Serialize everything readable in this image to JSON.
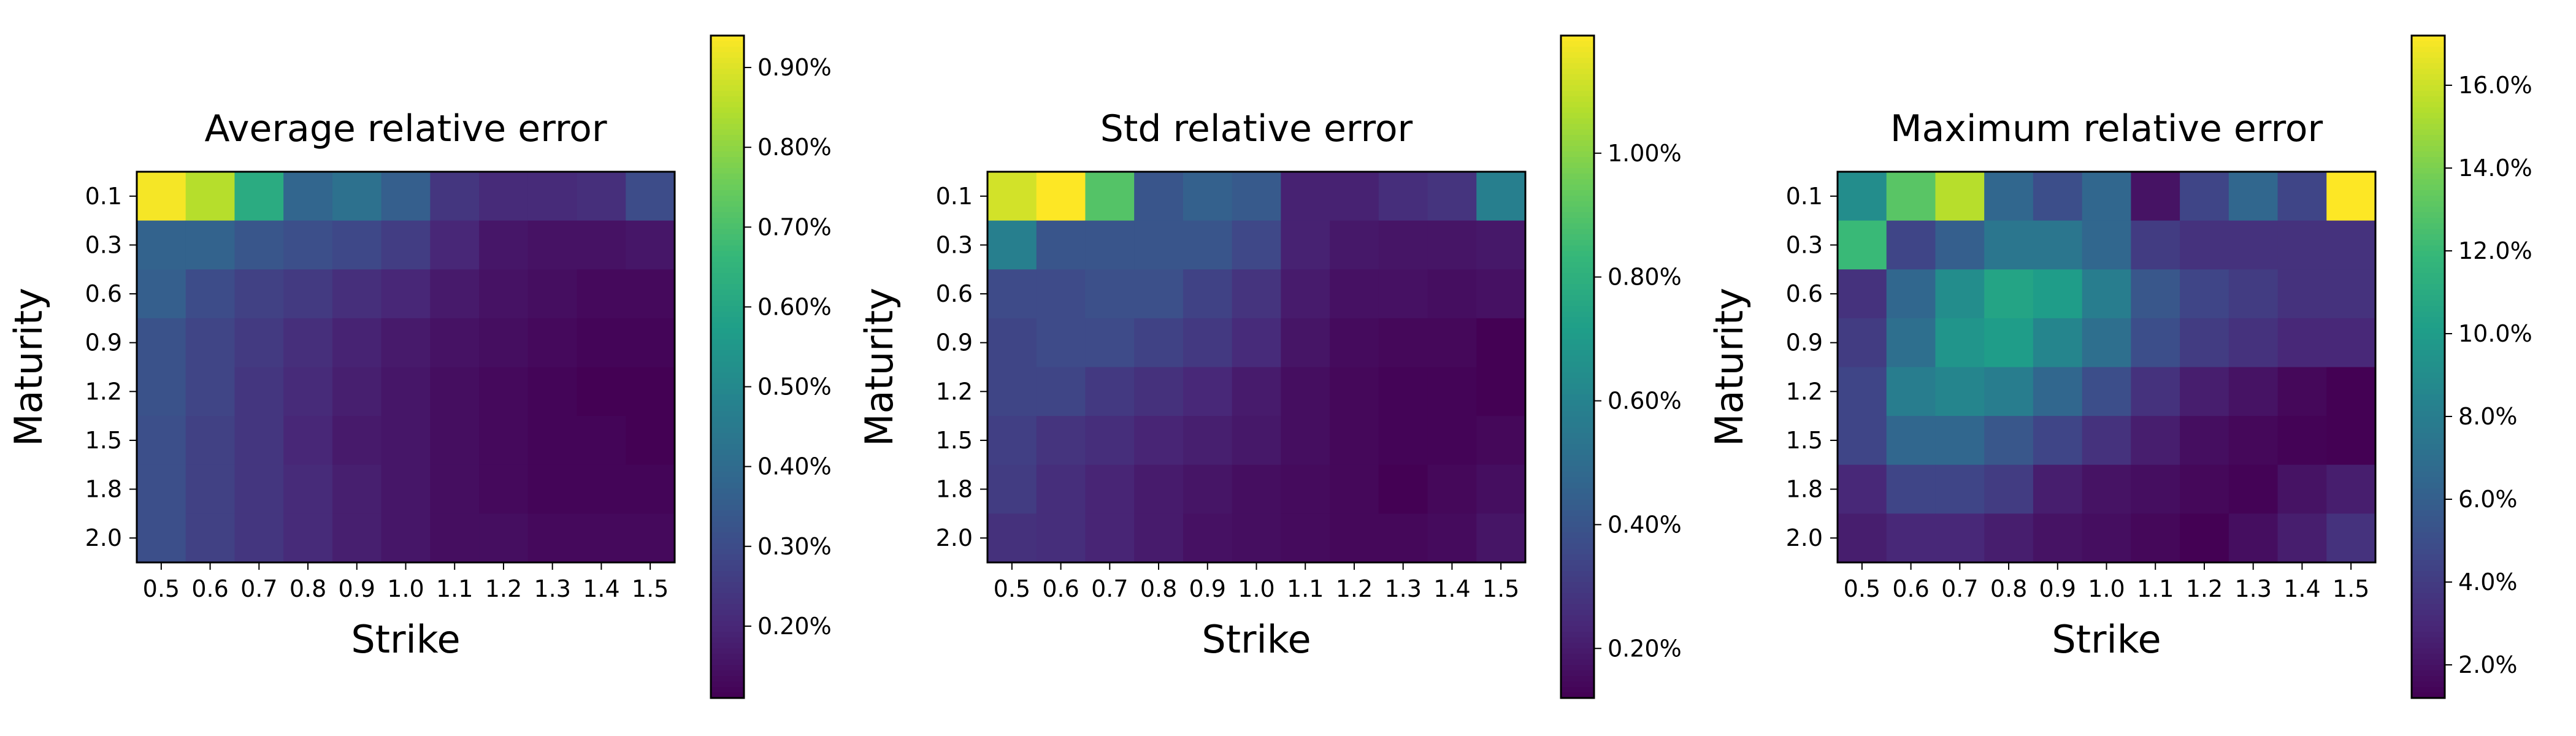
{
  "chart_data": [
    {
      "type": "heatmap",
      "title": "Average relative error",
      "xlabel": "Strike",
      "ylabel": "Maturity",
      "x": [
        "0.5",
        "0.6",
        "0.7",
        "0.8",
        "0.9",
        "1.0",
        "1.1",
        "1.2",
        "1.3",
        "1.4",
        "1.5"
      ],
      "y": [
        "0.1",
        "0.3",
        "0.6",
        "0.9",
        "1.2",
        "1.5",
        "1.8",
        "2.0"
      ],
      "unit": "%",
      "values": [
        [
          0.93,
          0.85,
          0.62,
          0.38,
          0.42,
          0.36,
          0.24,
          0.21,
          0.21,
          0.22,
          0.3
        ],
        [
          0.37,
          0.37,
          0.33,
          0.31,
          0.29,
          0.26,
          0.2,
          0.16,
          0.15,
          0.15,
          0.16
        ],
        [
          0.36,
          0.3,
          0.27,
          0.25,
          0.22,
          0.2,
          0.17,
          0.15,
          0.14,
          0.13,
          0.13
        ],
        [
          0.32,
          0.28,
          0.25,
          0.22,
          0.19,
          0.17,
          0.15,
          0.14,
          0.13,
          0.12,
          0.12
        ],
        [
          0.32,
          0.28,
          0.24,
          0.21,
          0.18,
          0.16,
          0.14,
          0.13,
          0.12,
          0.11,
          0.11
        ],
        [
          0.31,
          0.27,
          0.24,
          0.2,
          0.17,
          0.16,
          0.14,
          0.13,
          0.12,
          0.12,
          0.11
        ],
        [
          0.31,
          0.27,
          0.24,
          0.21,
          0.18,
          0.16,
          0.14,
          0.13,
          0.12,
          0.12,
          0.12
        ],
        [
          0.31,
          0.27,
          0.24,
          0.21,
          0.18,
          0.16,
          0.14,
          0.14,
          0.13,
          0.13,
          0.13
        ]
      ],
      "colorbar": {
        "range": [
          0.11,
          0.94
        ],
        "ticks": [
          0.2,
          0.3,
          0.4,
          0.5,
          0.6,
          0.7,
          0.8,
          0.9
        ],
        "tick_labels": [
          "0.20%",
          "0.30%",
          "0.40%",
          "0.50%",
          "0.60%",
          "0.70%",
          "0.80%",
          "0.90%"
        ]
      },
      "colormap": "viridis"
    },
    {
      "type": "heatmap",
      "title": "Std relative error",
      "xlabel": "Strike",
      "ylabel": "Maturity",
      "x": [
        "0.5",
        "0.6",
        "0.7",
        "0.8",
        "0.9",
        "1.0",
        "1.1",
        "1.2",
        "1.3",
        "1.4",
        "1.5"
      ],
      "y": [
        "0.1",
        "0.3",
        "0.6",
        "0.9",
        "1.2",
        "1.5",
        "1.8",
        "2.0"
      ],
      "unit": "%",
      "values": [
        [
          1.12,
          1.19,
          0.9,
          0.4,
          0.45,
          0.42,
          0.22,
          0.22,
          0.26,
          0.28,
          0.58
        ],
        [
          0.58,
          0.4,
          0.4,
          0.4,
          0.4,
          0.35,
          0.22,
          0.19,
          0.18,
          0.18,
          0.19
        ],
        [
          0.36,
          0.36,
          0.38,
          0.38,
          0.33,
          0.28,
          0.2,
          0.17,
          0.17,
          0.16,
          0.17
        ],
        [
          0.34,
          0.36,
          0.36,
          0.33,
          0.3,
          0.25,
          0.18,
          0.15,
          0.14,
          0.14,
          0.12
        ],
        [
          0.34,
          0.34,
          0.3,
          0.27,
          0.24,
          0.2,
          0.16,
          0.14,
          0.13,
          0.13,
          0.12
        ],
        [
          0.32,
          0.28,
          0.26,
          0.23,
          0.21,
          0.19,
          0.16,
          0.14,
          0.13,
          0.13,
          0.14
        ],
        [
          0.31,
          0.26,
          0.23,
          0.2,
          0.18,
          0.16,
          0.15,
          0.14,
          0.12,
          0.14,
          0.16
        ],
        [
          0.27,
          0.26,
          0.23,
          0.2,
          0.17,
          0.16,
          0.15,
          0.14,
          0.14,
          0.15,
          0.18
        ]
      ],
      "colorbar": {
        "range": [
          0.12,
          1.19
        ],
        "ticks": [
          0.2,
          0.4,
          0.6,
          0.8,
          1.0
        ],
        "tick_labels": [
          "0.20%",
          "0.40%",
          "0.60%",
          "0.80%",
          "1.00%"
        ]
      },
      "colormap": "viridis"
    },
    {
      "type": "heatmap",
      "title": "Maximum relative error",
      "xlabel": "Strike",
      "ylabel": "Maturity",
      "x": [
        "0.5",
        "0.6",
        "0.7",
        "0.8",
        "0.9",
        "1.0",
        "1.1",
        "1.2",
        "1.3",
        "1.4",
        "1.5"
      ],
      "y": [
        "0.1",
        "0.3",
        "0.6",
        "0.9",
        "1.2",
        "1.5",
        "1.8",
        "2.0"
      ],
      "unit": "%",
      "values": [
        [
          9.0,
          13.0,
          15.5,
          6.5,
          5.0,
          6.5,
          2.0,
          4.5,
          6.5,
          4.5,
          17.2
        ],
        [
          12.0,
          4.5,
          6.0,
          7.5,
          7.5,
          6.5,
          4.0,
          3.5,
          3.5,
          3.5,
          3.5
        ],
        [
          3.5,
          6.5,
          9.0,
          10.5,
          10.0,
          8.0,
          5.5,
          4.5,
          4.0,
          3.5,
          3.5
        ],
        [
          4.0,
          7.0,
          9.5,
          10.0,
          8.5,
          7.0,
          5.0,
          4.0,
          3.5,
          3.0,
          3.0
        ],
        [
          4.5,
          8.0,
          8.5,
          8.0,
          6.5,
          5.0,
          3.5,
          2.5,
          2.0,
          1.5,
          1.2
        ],
        [
          4.5,
          6.5,
          6.5,
          5.5,
          4.5,
          3.5,
          2.5,
          1.8,
          1.5,
          1.3,
          1.2
        ],
        [
          3.0,
          4.5,
          4.5,
          4.0,
          2.5,
          2.0,
          1.8,
          1.5,
          1.3,
          2.0,
          2.5
        ],
        [
          2.5,
          3.0,
          3.0,
          2.5,
          2.0,
          1.8,
          1.5,
          1.2,
          1.8,
          2.5,
          3.5
        ]
      ],
      "colorbar": {
        "range": [
          1.2,
          17.2
        ],
        "ticks": [
          2,
          4,
          6,
          8,
          10,
          12,
          14,
          16
        ],
        "tick_labels": [
          "2.0%",
          "4.0%",
          "6.0%",
          "8.0%",
          "10.0%",
          "12.0%",
          "14.0%",
          "16.0%"
        ]
      },
      "colormap": "viridis"
    }
  ]
}
